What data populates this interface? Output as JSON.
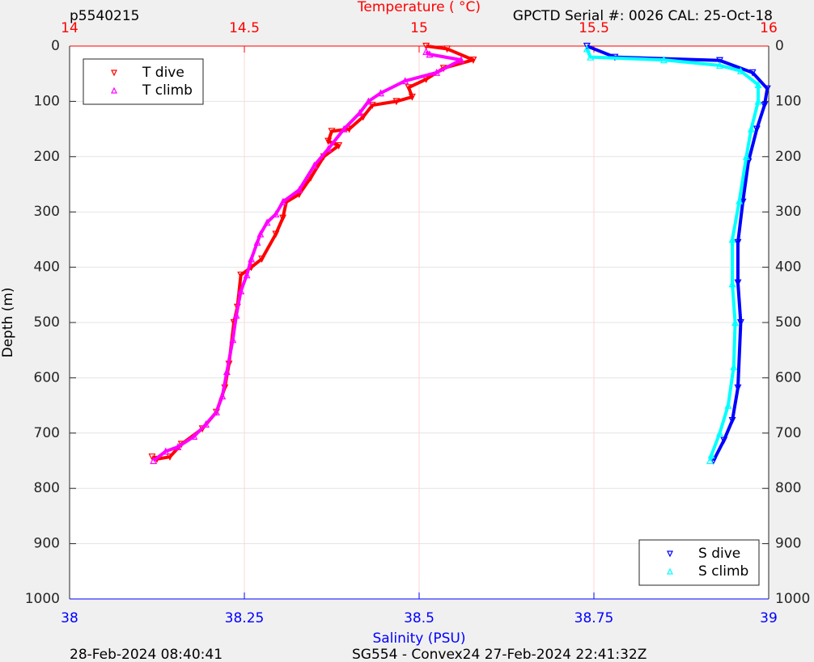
{
  "chart_data": {
    "type": "line",
    "title": "p5540215",
    "subtitle": "GPCTD Serial #: 0026 CAL: 25-Oct-18",
    "x_label": "Temperature (    °C)",
    "x2_label": "Salinity (PSU)",
    "y_label": "Depth (m)",
    "footer_left": "28-Feb-2024 08:40:41",
    "footer_right": "SG554 - Convex24 27-Feb-2024 22:41:32Z",
    "xlim": [
      14,
      16
    ],
    "xticks": [
      14,
      14.5,
      15,
      15.5,
      16
    ],
    "x_color": "#ff0000",
    "x2lim": [
      38,
      39
    ],
    "x2ticks": [
      38,
      38.25,
      38.5,
      38.75,
      39
    ],
    "x2_color": "#0000ff",
    "ylim": [
      0,
      1000
    ],
    "y_reversed": true,
    "yticks": [
      0,
      100,
      200,
      300,
      400,
      500,
      600,
      700,
      800,
      900,
      1000
    ],
    "grid": true,
    "legend_loc": {
      "x": "upper left",
      "x2": "lower right"
    },
    "series": [
      {
        "name": "T dive",
        "color": "#ff0000",
        "marker": "v",
        "axis": "x",
        "y": [
          0,
          5,
          25,
          40,
          60,
          75,
          92,
          100,
          107,
          128,
          150,
          154,
          172,
          180,
          200,
          238,
          268,
          282,
          311,
          340,
          385,
          400,
          414,
          472,
          500,
          575,
          618,
          662,
          692,
          720,
          743,
          747,
          743
        ],
        "x": [
          15.02,
          15.08,
          15.155,
          15.07,
          15.02,
          14.97,
          14.98,
          14.935,
          14.866,
          14.84,
          14.8,
          14.75,
          14.74,
          14.77,
          14.727,
          14.69,
          14.657,
          14.62,
          14.61,
          14.59,
          14.55,
          14.52,
          14.49,
          14.48,
          14.47,
          14.456,
          14.444,
          14.42,
          14.38,
          14.32,
          14.287,
          14.25,
          14.236
        ]
      },
      {
        "name": "T climb",
        "color": "#ff00ff",
        "marker": "^",
        "axis": "x",
        "y": [
          10,
          15,
          25,
          48,
          63,
          85,
          100,
          121,
          150,
          186,
          216,
          260,
          282,
          304,
          319,
          340,
          355,
          385,
          414,
          443,
          487,
          531,
          589,
          633,
          662,
          684,
          706,
          725,
          733,
          750
        ],
        "x": [
          15.02,
          15.03,
          15.12,
          15.05,
          14.96,
          14.89,
          14.855,
          14.83,
          14.785,
          14.74,
          14.7,
          14.657,
          14.61,
          14.59,
          14.565,
          14.546,
          14.537,
          14.52,
          14.507,
          14.49,
          14.477,
          14.467,
          14.45,
          14.437,
          14.42,
          14.39,
          14.356,
          14.31,
          14.275,
          14.24
        ]
      },
      {
        "name": "S dive",
        "color": "#0000ff",
        "marker": "v",
        "axis": "x2",
        "y": [
          0,
          20,
          26,
          48,
          77,
          107,
          150,
          209,
          282,
          355,
          428,
          500,
          618,
          677,
          713,
          750
        ],
        "x": [
          38.74,
          38.78,
          38.93,
          38.977,
          38.998,
          38.994,
          38.983,
          38.971,
          38.963,
          38.956,
          38.956,
          38.96,
          38.956,
          38.948,
          38.936,
          38.921
        ]
      },
      {
        "name": "S climb",
        "color": "#00ffff",
        "marker": "^",
        "axis": "x2",
        "y": [
          5,
          20,
          25,
          35,
          45,
          70,
          100,
          150,
          200,
          280,
          350,
          430,
          500,
          580,
          650,
          700,
          740,
          750
        ],
        "x": [
          38.74,
          38.745,
          38.85,
          38.93,
          38.96,
          38.985,
          38.985,
          38.975,
          38.968,
          38.958,
          38.948,
          38.948,
          38.952,
          38.95,
          38.942,
          38.93,
          38.918,
          38.916
        ]
      }
    ]
  }
}
